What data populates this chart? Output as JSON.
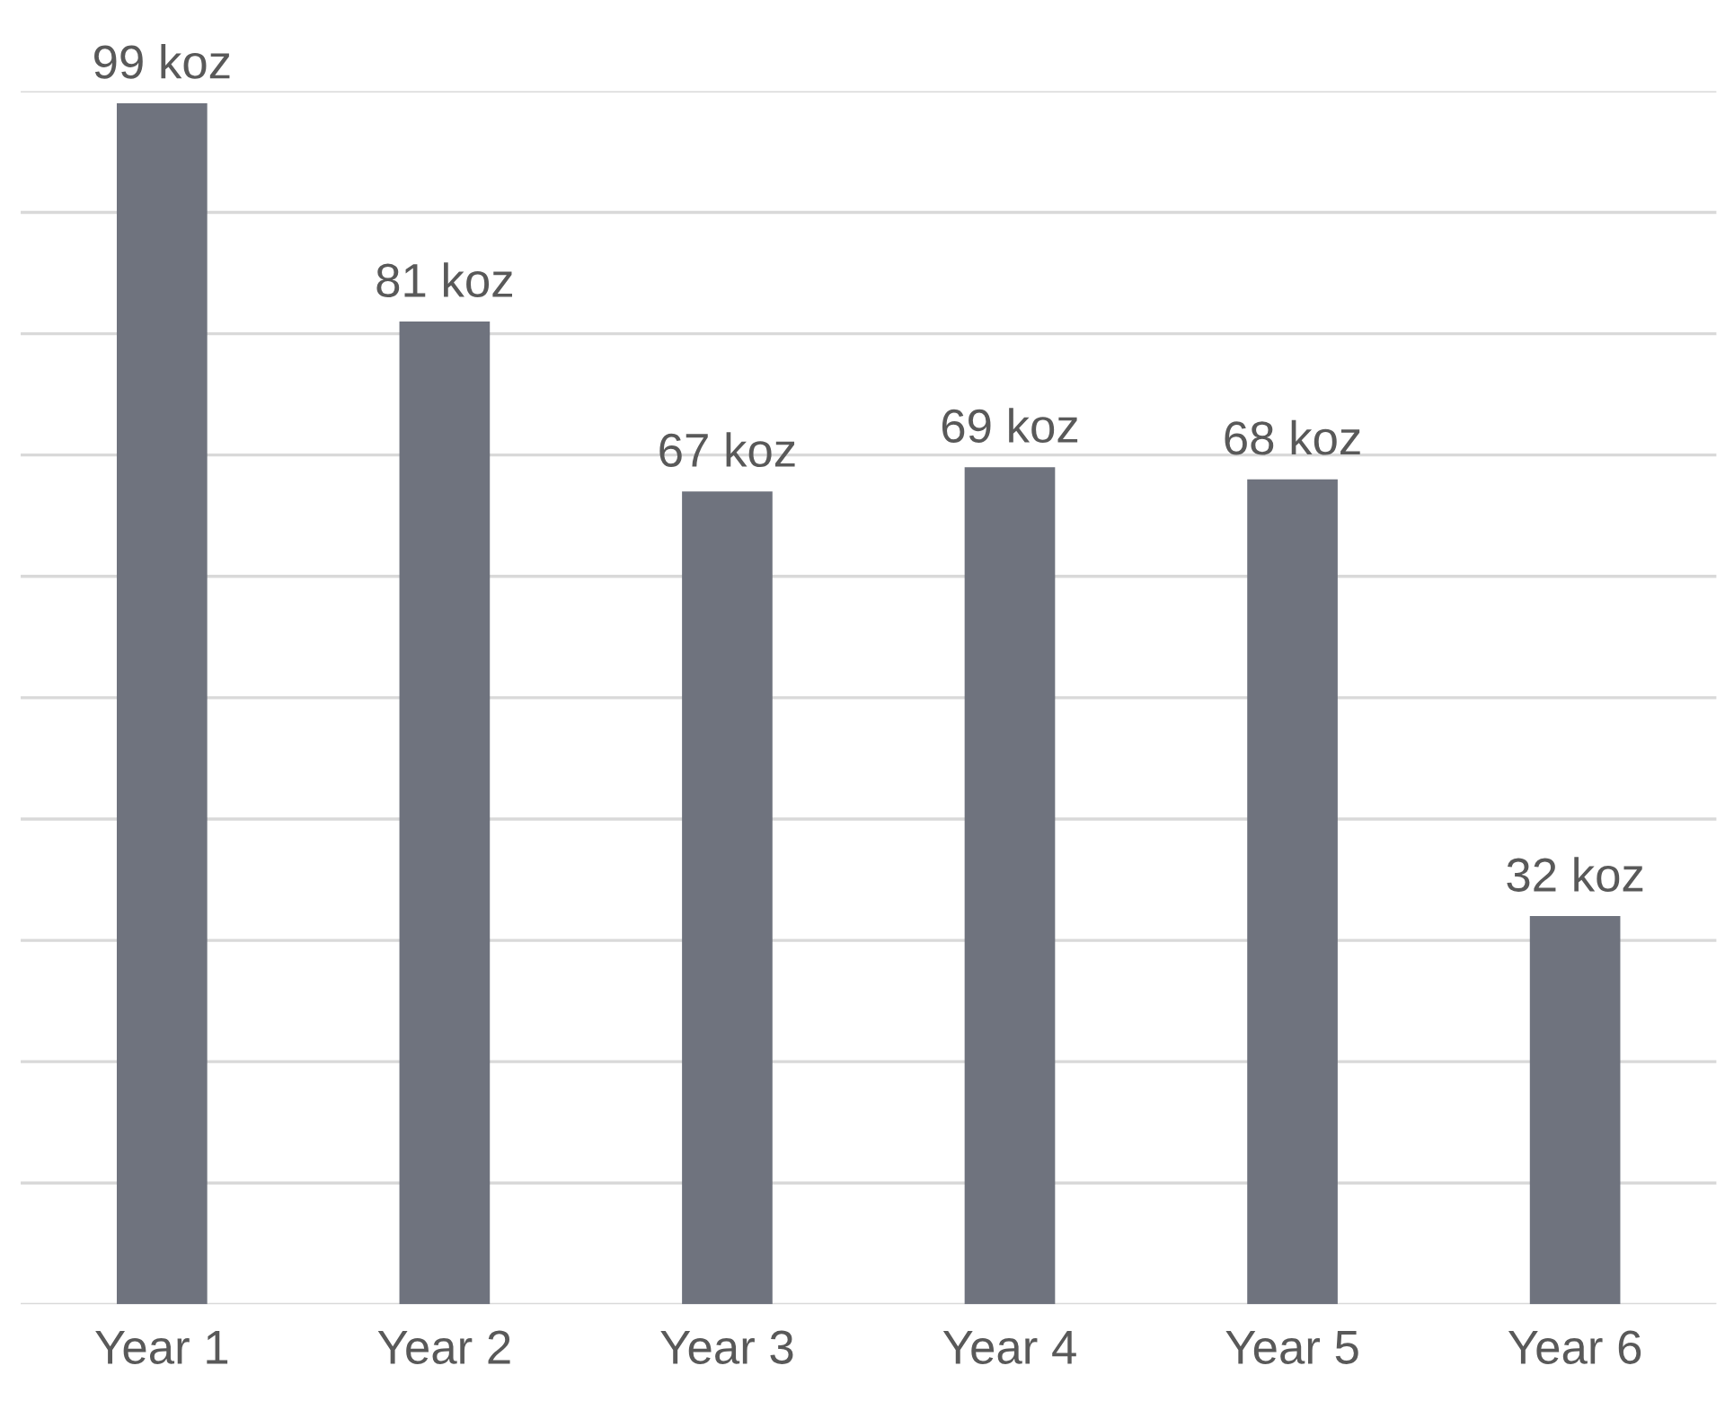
{
  "chart_data": {
    "type": "bar",
    "categories": [
      "Year 1",
      "Year 2",
      "Year 3",
      "Year 4",
      "Year 5",
      "Year 6"
    ],
    "values": [
      99,
      81,
      67,
      69,
      68,
      32
    ],
    "value_labels": [
      "99 koz",
      "81 koz",
      "67 koz",
      "69 koz",
      "68 koz",
      "32 koz"
    ],
    "color": "#6f737e",
    "ylim": [
      0,
      100
    ],
    "yticks": [
      {
        "value": 0,
        "label": null
      },
      {
        "value": 10,
        "label": null
      },
      {
        "value": 20,
        "label": null
      },
      {
        "value": 30,
        "label": null
      },
      {
        "value": 40,
        "label": null
      },
      {
        "value": 50,
        "label": null
      },
      {
        "value": 60,
        "label": null
      },
      {
        "value": 70,
        "label": null
      },
      {
        "value": 80,
        "label": null
      },
      {
        "value": 90,
        "label": null
      },
      {
        "value": 100,
        "label": null
      }
    ],
    "grid": "y",
    "tick_labels": "x"
  }
}
